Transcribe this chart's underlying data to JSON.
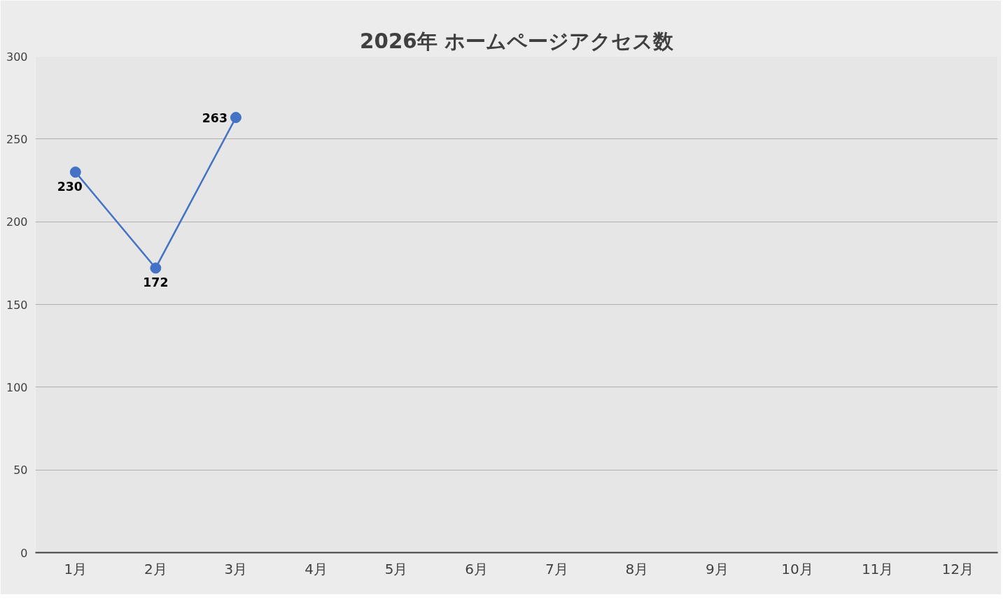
{
  "chart_data": {
    "type": "line",
    "title": "2026年 ホームページアクセス数",
    "categories": [
      "1月",
      "2月",
      "3月",
      "4月",
      "5月",
      "6月",
      "7月",
      "8月",
      "9月",
      "10月",
      "11月",
      "12月"
    ],
    "series": [
      {
        "color": "#4472c4",
        "values": [
          230,
          172,
          263,
          null,
          null,
          null,
          null,
          null,
          null,
          null,
          null,
          null
        ]
      }
    ],
    "ylim": [
      0,
      300
    ],
    "yticks": [
      0,
      50,
      100,
      150,
      200,
      250,
      300
    ],
    "grid": "y",
    "data_labels": true,
    "marker": "circle",
    "line_style": "solid"
  }
}
